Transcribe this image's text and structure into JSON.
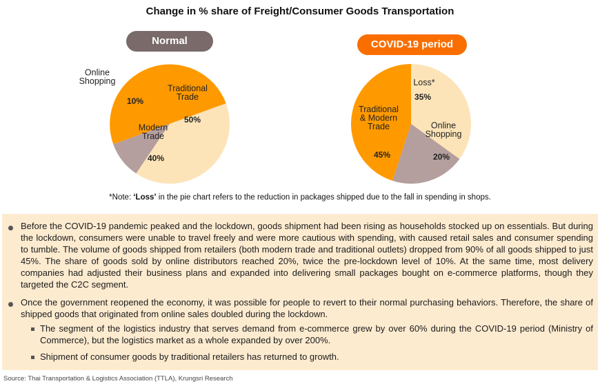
{
  "title": "Change in % share of Freight/Consumer Goods Transportation",
  "chart_data": [
    {
      "type": "pie",
      "title": "Normal",
      "slices": [
        {
          "label": "Traditional Trade",
          "label_lines": [
            "Traditional",
            "Trade"
          ],
          "value": 50,
          "display": "50%",
          "color": "#ff9900"
        },
        {
          "label": "Modern Trade",
          "label_lines": [
            "Modern",
            "Trade"
          ],
          "value": 40,
          "display": "40%",
          "color": "#fde4b8"
        },
        {
          "label": "Online Shopping",
          "label_lines": [
            "Online",
            "Shopping"
          ],
          "value": 10,
          "display": "10%",
          "color": "#b49e9e"
        }
      ]
    },
    {
      "type": "pie",
      "title": "COVID-19 period",
      "slices": [
        {
          "label": "Loss*",
          "label_lines": [
            "Loss*"
          ],
          "value": 35,
          "display": "35%",
          "color": "#fde4b8"
        },
        {
          "label": "Online Shopping",
          "label_lines": [
            "Online",
            "Shopping"
          ],
          "value": 20,
          "display": "20%",
          "color": "#b49e9e"
        },
        {
          "label": "Traditional & Modern Trade",
          "label_lines": [
            "Traditional",
            "& Modern",
            "Trade"
          ],
          "value": 45,
          "display": "45%",
          "color": "#ff9900"
        }
      ]
    }
  ],
  "note": {
    "prefix": "*Note: ",
    "bold": "‘Loss’",
    "suffix": " in the pie chart refers to the reduction in packages shipped due to the fall in spending in shops."
  },
  "bullets": [
    "Before the COVID-19 pandemic peaked and the lockdown, goods shipment had been rising as households stocked up on essentials. But during the lockdown, consumers were unable to travel freely and were more cautious with spending, with caused retail sales and consumer spending to tumble. The volume of goods shipped from retailers (both modern trade and traditional outlets) dropped from 90% of all goods shipped to just 45%. The share of goods sold by online distributors reached 20%, twice the pre-lockdown level of 10%. At the same time, most delivery companies had adjusted their business plans and expanded into delivering small packages bought on e-commerce platforms, though they targeted the C2C segment.",
    "Once the government reopened the economy, it was possible for people to revert to their normal purchasing behaviors. Therefore, the share of shipped goods that originated from online sales doubled during the lockdown."
  ],
  "sub_bullets": [
    "The segment of the logistics industry that serves demand from e-commerce grew by over 60% during the COVID-19 period (Ministry of Commerce), but the logistics market as a whole expanded by over 200%.",
    "Shipment of consumer goods by traditional retailers has returned to growth."
  ],
  "source": "Source: Thai Transportation & Logistics Association (TTLA), Krungsri Research"
}
